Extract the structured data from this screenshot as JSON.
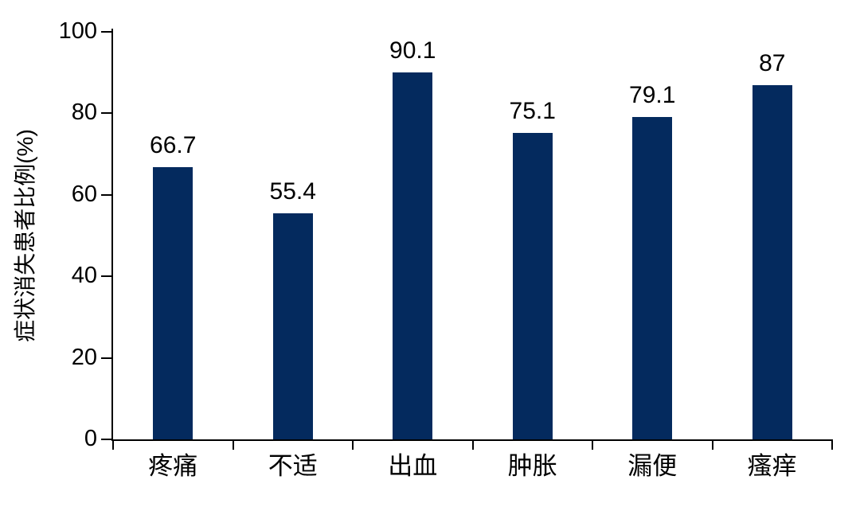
{
  "chart_data": {
    "type": "bar",
    "title": "",
    "xlabel": "",
    "ylabel": "症状消失患者比例(%)",
    "categories": [
      "疼痛",
      "不适",
      "出血",
      "肿胀",
      "漏便",
      "瘙痒"
    ],
    "values": [
      66.7,
      55.4,
      90.1,
      75.1,
      79.1,
      87
    ],
    "value_labels": [
      "66.7",
      "55.4",
      "90.1",
      "75.1",
      "79.1",
      "87"
    ],
    "ylim": [
      0,
      100
    ],
    "yticks": [
      0,
      20,
      40,
      60,
      80,
      100
    ],
    "grid": false,
    "legend_position": "none",
    "bar_color": "#042a5e",
    "axis_color": "#000000",
    "background_color": "#ffffff"
  }
}
